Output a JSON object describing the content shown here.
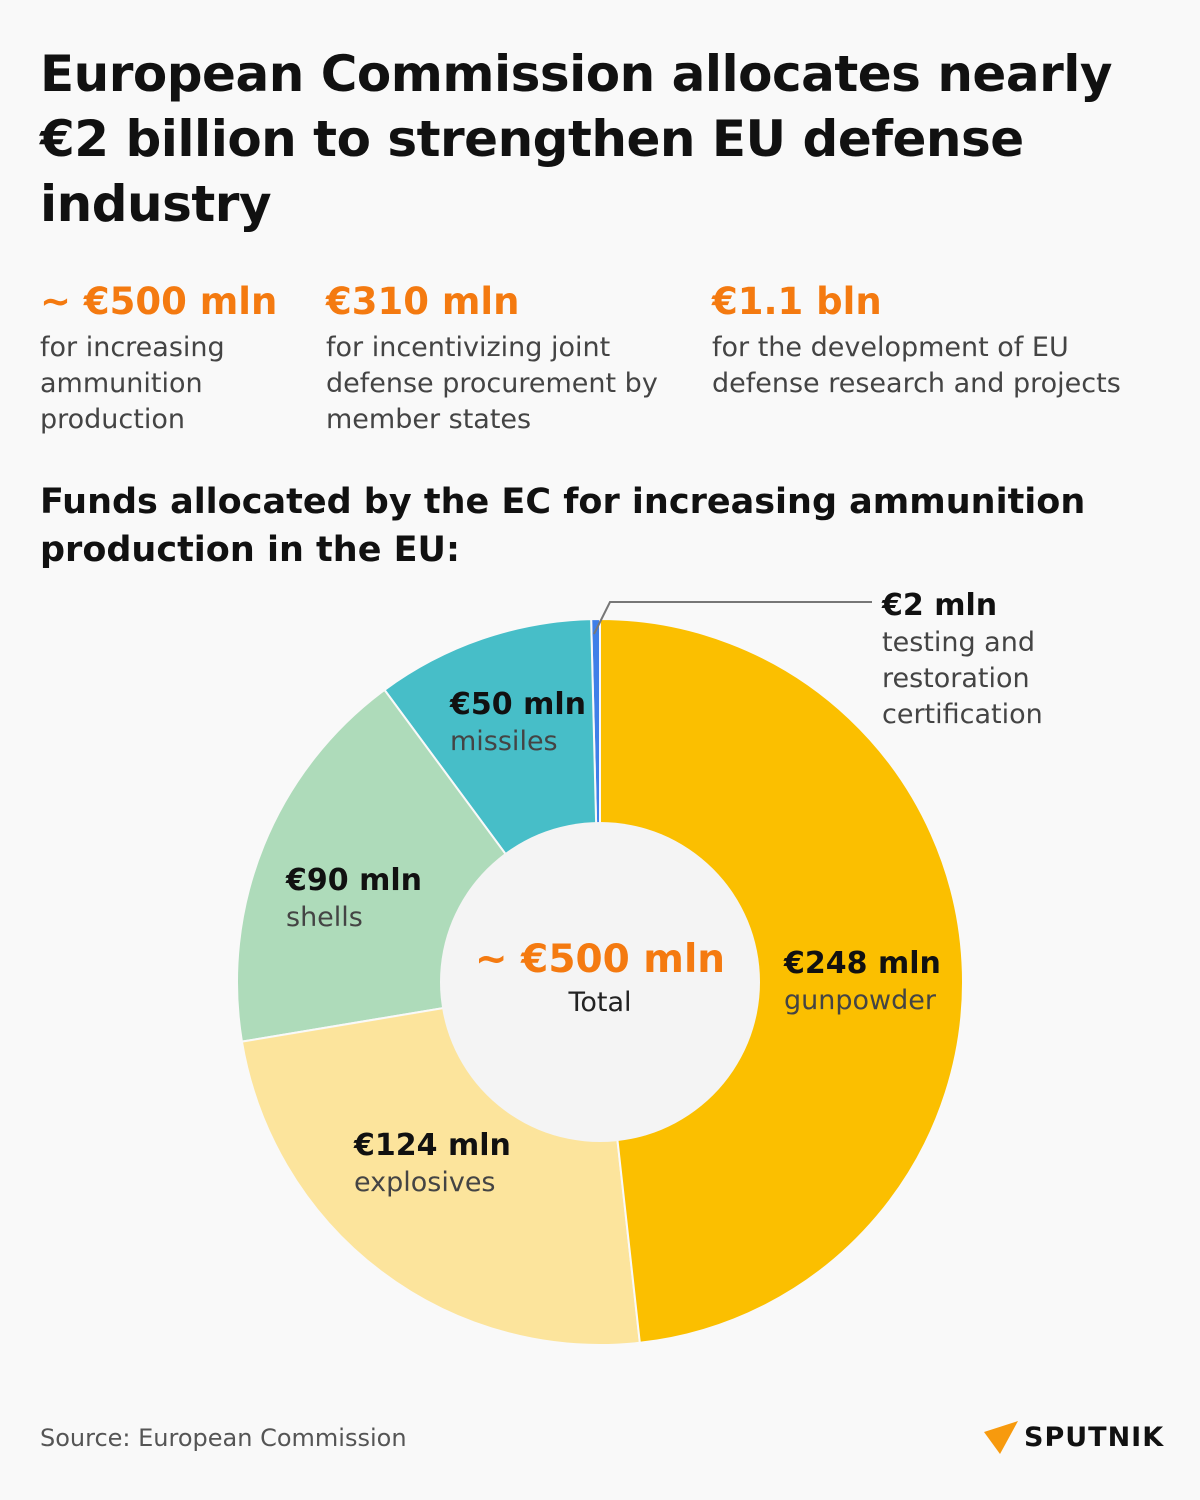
{
  "title": "European Commission allocates nearly €2 billion to strengthen EU defense industry",
  "stats": [
    {
      "value": "~ €500 mln",
      "desc": "for increasing ammunition production"
    },
    {
      "value": "€310 mln",
      "desc": "for incentivizing joint defense procurement by member states"
    },
    {
      "value": "€1.1 bln",
      "desc": "for the development of EU defense research and projects"
    }
  ],
  "subtitle": "Funds allocated by the EC for increasing ammunition production in the EU:",
  "chart_data": {
    "type": "pie",
    "variant": "donut",
    "unit": "€ mln",
    "center_value": "~ €500 mln",
    "center_label": "Total",
    "slices": [
      {
        "label": "gunpowder",
        "value": 248,
        "value_label": "€248 mln",
        "color": "#fbbf00"
      },
      {
        "label": "explosives",
        "value": 124,
        "value_label": "€124 mln",
        "color": "#fce49c"
      },
      {
        "label": "shells",
        "value": 90,
        "value_label": "€90 mln",
        "color": "#aedbba"
      },
      {
        "label": "missiles",
        "value": 50,
        "value_label": "€50 mln",
        "color": "#47bec8"
      },
      {
        "label": "testing and restoration certification",
        "value": 2,
        "value_label": "€2 mln",
        "color": "#3f7fe8"
      }
    ]
  },
  "source": "Source: European Commission",
  "logo": "SPUTNIK",
  "accent_color": "#f47a10"
}
